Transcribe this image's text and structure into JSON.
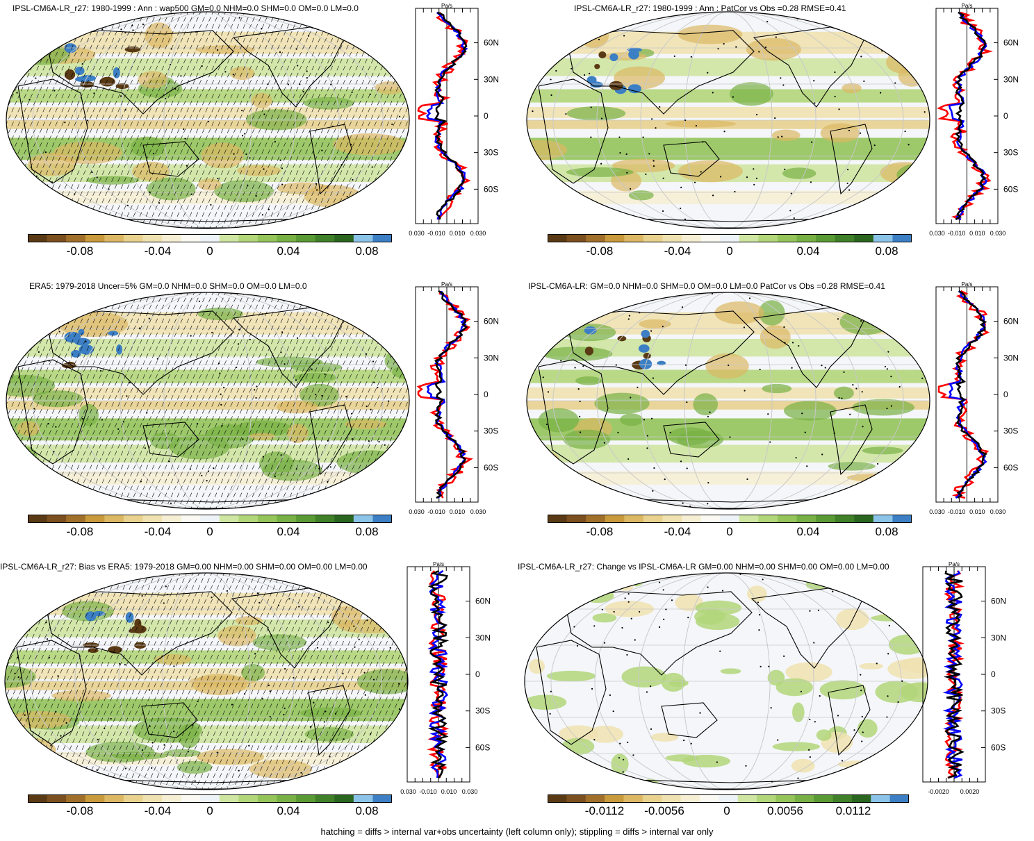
{
  "footer": "hatching = diffs > internal var+obs uncertainty (left column only); stippling = diffs > internal var only",
  "colors": {
    "palette": [
      "#5a3a14",
      "#7b4f1e",
      "#a0702a",
      "#c89a3c",
      "#dcb864",
      "#e8d28e",
      "#f0e2b0",
      "#f6efd4",
      "#fbfaf2",
      "#eef3f8",
      "#cfe6a2",
      "#b2d67a",
      "#94c45a",
      "#77b044",
      "#5a9a34",
      "#3f8028",
      "#2a6620",
      "#8cc3e8",
      "#3c7fc4"
    ],
    "profile_model": "#ff0000",
    "profile_obs": "#0000ff",
    "profile_other": "#000000"
  },
  "panels": [
    {
      "title": "IPSL-CM6A-LR_r27: 1980-1999 : Ann : wap500 GM=0.0 NHM=0.0 SHM=0.0 OM=0.0 LM=0.0",
      "unit": "Pa/s",
      "lat_ticks": [
        "60N",
        "30N",
        "0",
        "30S",
        "60S"
      ],
      "profile_xticks": [
        "-0.030",
        "-0.010",
        "0.010",
        "0.030"
      ],
      "colorbar_labels": [
        "-0.08",
        "-0.04",
        "0",
        "0.04",
        "0.08"
      ],
      "hatched": true
    },
    {
      "title": "IPSL-CM6A-LR_r27: 1980-1999 : Ann : PatCor vs Obs =0.28 RMSE=0.41",
      "unit": "Pa/s",
      "lat_ticks": [
        "60N",
        "30N",
        "0",
        "30S",
        "60S"
      ],
      "profile_xticks": [
        "-0.030",
        "-0.010",
        "0.010",
        "0.030"
      ],
      "colorbar_labels": [
        "-0.08",
        "-0.04",
        "0",
        "0.04",
        "0.08"
      ],
      "hatched": false
    },
    {
      "title": "ERA5: 1979-2018 Uncer=5% GM=0.0 NHM=0.0 SHM=0.0 OM=0.0 LM=0.0",
      "unit": "Pa/s",
      "lat_ticks": [
        "60N",
        "30N",
        "0",
        "30S",
        "60S"
      ],
      "profile_xticks": [
        "-0.030",
        "-0.010",
        "0.010",
        "0.030"
      ],
      "colorbar_labels": [
        "-0.08",
        "-0.04",
        "0",
        "0.04",
        "0.08"
      ],
      "hatched": true
    },
    {
      "title": "IPSL-CM6A-LR: GM=0.0 NHM=0.0 SHM=0.0 OM=0.0 LM=0.0 PatCor vs Obs =0.28 RMSE=0.41",
      "unit": "Pa/s",
      "lat_ticks": [
        "60N",
        "30N",
        "0",
        "30S",
        "60S"
      ],
      "profile_xticks": [
        "-0.030",
        "-0.010",
        "0.010",
        "0.030"
      ],
      "colorbar_labels": [
        "-0.08",
        "-0.04",
        "0",
        "0.04",
        "0.08"
      ],
      "hatched": false
    },
    {
      "title": "IPSL-CM6A-LR_r27: Bias vs ERA5: 1979-2018 GM=0.00 NHM=0.00 SHM=0.00 OM=0.00 LM=0.00",
      "unit": "Pa/s",
      "lat_ticks": [
        "60N",
        "30N",
        "0",
        "30S",
        "60S"
      ],
      "profile_xticks": [
        "-0.030",
        "-0.010",
        "0.010",
        "0.030"
      ],
      "colorbar_labels": [
        "-0.08",
        "-0.04",
        "0",
        "0.04",
        "0.08"
      ],
      "hatched": true
    },
    {
      "title": "IPSL-CM6A-LR_r27: Change vs IPSL-CM6A-LR GM=0.00 NHM=0.00 SHM=0.00 OM=0.00 LM=0.00",
      "unit": "Pa/s",
      "lat_ticks": [
        "60N",
        "30N",
        "0",
        "30S",
        "60S"
      ],
      "profile_xticks": [
        "-0.0020",
        "0.0020"
      ],
      "colorbar_labels": [
        "-0.0112",
        "-0.0056",
        "0",
        "0.0056",
        "0.0112"
      ],
      "hatched": false
    }
  ]
}
